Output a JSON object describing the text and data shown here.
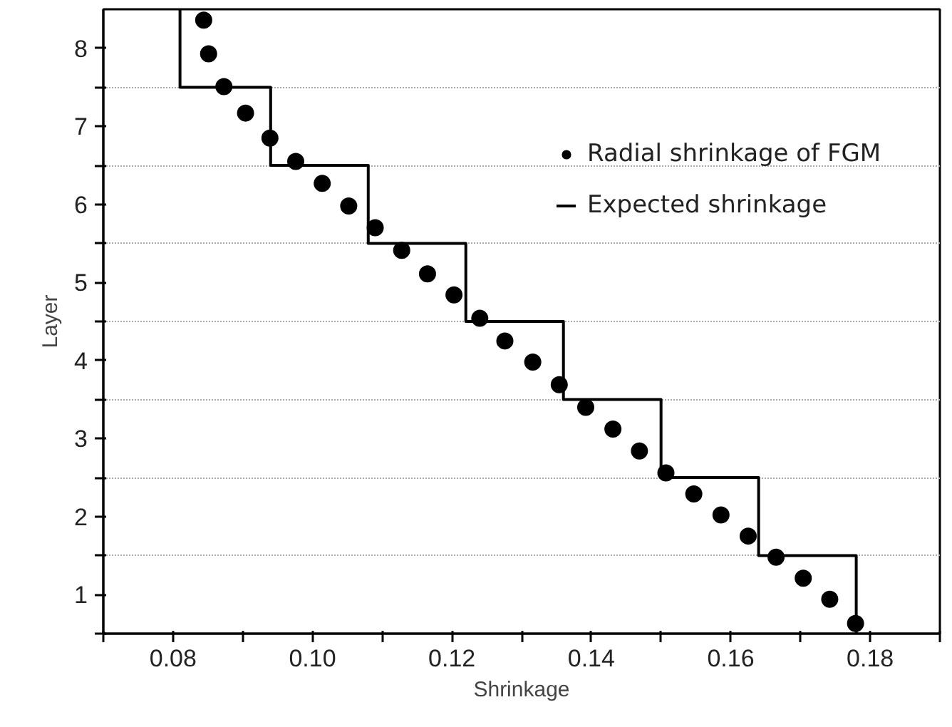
{
  "chart_data": {
    "type": "scatter",
    "xlabel": "Shrinkage",
    "ylabel": "Layer",
    "xlim": [
      0.07,
      0.19
    ],
    "xticks": [
      {
        "value": 0.07,
        "label": null
      },
      0.08,
      {
        "value": 0.09,
        "label": null
      },
      {
        "value": 0.1,
        "label": "0.10"
      },
      {
        "value": 0.11,
        "label": null
      },
      0.12,
      {
        "value": 0.13,
        "label": null
      },
      0.14,
      {
        "value": 0.15,
        "label": null
      },
      0.16,
      {
        "value": 0.17,
        "label": null
      },
      0.18,
      {
        "value": 0.19,
        "label": null
      }
    ],
    "ylim": [
      0.5,
      8.5
    ],
    "yticks": [
      {
        "value": 0.5,
        "label": null
      },
      1,
      {
        "value": 1.5,
        "label": null
      },
      2,
      {
        "value": 2.5,
        "label": null
      },
      3,
      {
        "value": 3.5,
        "label": null
      },
      4,
      {
        "value": 4.5,
        "label": null
      },
      5,
      {
        "value": 5.5,
        "label": null
      },
      6,
      {
        "value": 6.5,
        "label": null
      },
      7,
      {
        "value": 7.5,
        "label": null
      },
      8
    ],
    "grid": "y",
    "legend": "top right",
    "series": [
      {
        "name": "Radial shrinkage of FGM",
        "type": "scatter",
        "marker": "circle",
        "color": "#000000",
        "x": [
          0.0844,
          0.0851,
          0.0873,
          0.0904,
          0.0939,
          0.0976,
          0.1014,
          0.1052,
          0.109,
          0.1128,
          0.1165,
          0.1203,
          0.124,
          0.1276,
          0.1316,
          0.1354,
          0.1392,
          0.1431,
          0.1469,
          0.1507,
          0.1547,
          0.1586,
          0.1625,
          0.1665,
          0.1704,
          0.1742,
          0.1779
        ],
        "values": [
          8.36,
          7.93,
          7.51,
          7.17,
          6.85,
          6.55,
          6.27,
          5.98,
          5.7,
          5.41,
          5.11,
          4.84,
          4.54,
          4.25,
          3.98,
          3.69,
          3.4,
          3.12,
          2.84,
          2.56,
          2.29,
          2.02,
          1.75,
          1.48,
          1.21,
          0.94,
          0.63
        ]
      },
      {
        "name": "Expected shrinkage",
        "type": "line",
        "line_style": "solid",
        "color": "#000000",
        "x": [
          0.081,
          0.081,
          0.094,
          0.094,
          0.108,
          0.108,
          0.122,
          0.122,
          0.136,
          0.136,
          0.15,
          0.15,
          0.164,
          0.164,
          0.178,
          0.178
        ],
        "values": [
          8.5,
          7.5,
          7.5,
          6.5,
          6.5,
          5.5,
          5.5,
          4.5,
          4.5,
          3.5,
          3.5,
          2.5,
          2.5,
          1.5,
          1.5,
          0.5
        ]
      }
    ]
  }
}
